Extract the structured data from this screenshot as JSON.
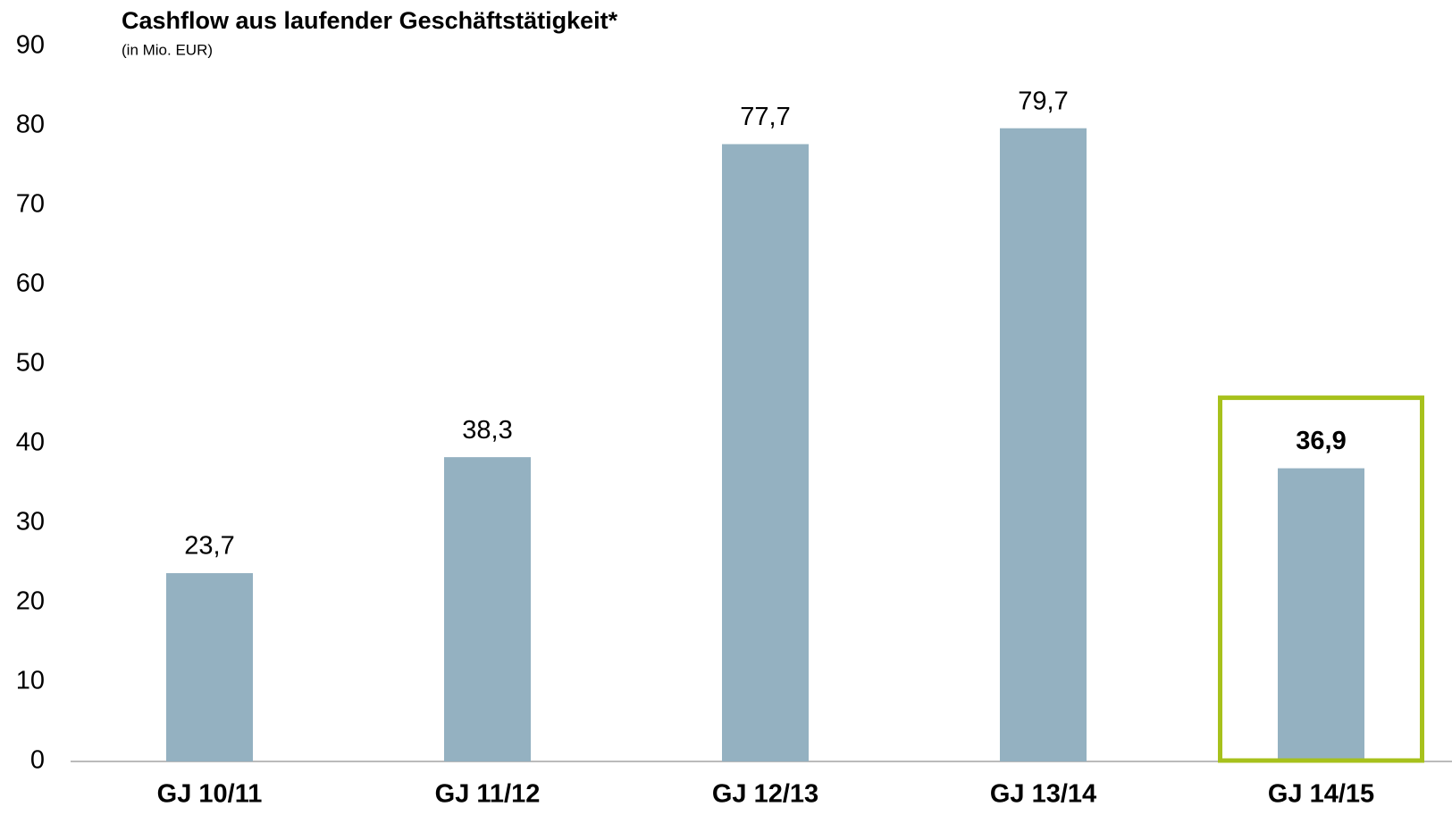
{
  "chart_data": {
    "type": "bar",
    "title": "Cashflow aus laufender Geschäftstätigkeit*",
    "subtitle": "(in Mio. EUR)",
    "categories": [
      "GJ 10/11",
      "GJ 11/12",
      "GJ 12/13",
      "GJ 13/14",
      "GJ 14/15"
    ],
    "values": [
      23.7,
      38.3,
      77.7,
      79.7,
      36.9
    ],
    "value_labels": [
      "23,7",
      "38,3",
      "77,7",
      "79,7",
      "36,9"
    ],
    "color": "#94b1c1",
    "highlight_index": 4,
    "highlight_color": "#a7c11c",
    "ylim": [
      0,
      90
    ],
    "yticks": [
      0,
      10,
      20,
      30,
      40,
      50,
      60,
      70,
      80,
      90
    ],
    "grid": false
  }
}
